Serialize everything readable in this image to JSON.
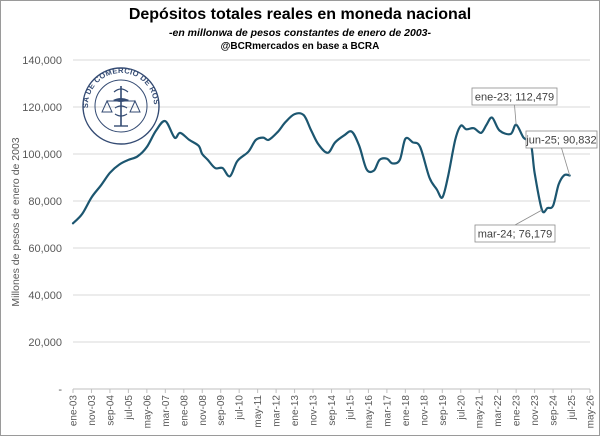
{
  "title": "Depósitos totales reales en moneda nacional",
  "subtitle": "-en millonwa de pesos constantes de enero de 2003-",
  "source": "@BCRmercados en base a BCRA",
  "logo_text": "BOLSA DE COMERCIO DE ROSARIO",
  "colors": {
    "line": "#1c5670",
    "grid": "#d9d9d9",
    "axis_text": "#595959"
  },
  "chart_data": {
    "type": "line",
    "title": "Depósitos totales reales en moneda nacional",
    "ylabel": "Millones de pesos de enero de 2003",
    "xlabel": "",
    "ylim": [
      0,
      140000
    ],
    "grid": true,
    "y_ticks": [
      {
        "value": 0,
        "label": "-"
      },
      {
        "value": 20000,
        "label": "20,000"
      },
      {
        "value": 40000,
        "label": "40,000"
      },
      {
        "value": 60000,
        "label": "60,000"
      },
      {
        "value": 80000,
        "label": "80,000"
      },
      {
        "value": 100000,
        "label": "100,000"
      },
      {
        "value": 120000,
        "label": "120,000"
      },
      {
        "value": 140000,
        "label": "140,000"
      }
    ],
    "x_ticks": [
      "ene-03",
      "nov-03",
      "sep-04",
      "jul-05",
      "may-06",
      "mar-07",
      "ene-08",
      "nov-08",
      "sep-09",
      "jul-10",
      "may-11",
      "mar-12",
      "ene-13",
      "nov-13",
      "sep-14",
      "jul-15",
      "may-16",
      "mar-17",
      "ene-18",
      "nov-18",
      "sep-19",
      "jul-20",
      "may-21",
      "mar-22",
      "ene-23",
      "nov-23",
      "sep-24",
      "jul-25",
      "may-26"
    ],
    "series": [
      {
        "values": [
          [
            "2003-01",
            70500
          ],
          [
            "2003-06",
            74500
          ],
          [
            "2003-11",
            81500
          ],
          [
            "2004-04",
            86500
          ],
          [
            "2004-09",
            92000
          ],
          [
            "2005-02",
            95500
          ],
          [
            "2005-07",
            97500
          ],
          [
            "2005-12",
            99000
          ],
          [
            "2006-05",
            103000
          ],
          [
            "2006-10",
            110000
          ],
          [
            "2007-03",
            114000
          ],
          [
            "2007-08",
            107000
          ],
          [
            "2007-11",
            109000
          ],
          [
            "2008-04",
            106000
          ],
          [
            "2008-09",
            103500
          ],
          [
            "2008-11",
            100000
          ],
          [
            "2009-02",
            97500
          ],
          [
            "2009-06",
            94000
          ],
          [
            "2009-10",
            94000
          ],
          [
            "2010-02",
            90500
          ],
          [
            "2010-06",
            97000
          ],
          [
            "2010-12",
            101000
          ],
          [
            "2011-04",
            106000
          ],
          [
            "2011-08",
            107000
          ],
          [
            "2011-11",
            106000
          ],
          [
            "2012-04",
            109500
          ],
          [
            "2012-08",
            113500
          ],
          [
            "2013-01",
            117000
          ],
          [
            "2013-06",
            116500
          ],
          [
            "2013-10",
            110000
          ],
          [
            "2014-02",
            104000
          ],
          [
            "2014-07",
            100500
          ],
          [
            "2014-11",
            105000
          ],
          [
            "2015-04",
            108000
          ],
          [
            "2015-08",
            109500
          ],
          [
            "2015-12",
            103500
          ],
          [
            "2016-04",
            93500
          ],
          [
            "2016-08",
            93000
          ],
          [
            "2016-11",
            97500
          ],
          [
            "2017-03",
            98000
          ],
          [
            "2017-06",
            96000
          ],
          [
            "2017-10",
            97500
          ],
          [
            "2018-01",
            106500
          ],
          [
            "2018-05",
            105000
          ],
          [
            "2018-09",
            103000
          ],
          [
            "2019-02",
            90000
          ],
          [
            "2019-06",
            85000
          ],
          [
            "2019-09",
            81500
          ],
          [
            "2019-12",
            90000
          ],
          [
            "2020-04",
            106000
          ],
          [
            "2020-07",
            112000
          ],
          [
            "2020-10",
            110500
          ],
          [
            "2021-02",
            111000
          ],
          [
            "2021-06",
            109000
          ],
          [
            "2021-09",
            112500
          ],
          [
            "2021-12",
            115500
          ],
          [
            "2022-04",
            110000
          ],
          [
            "2022-10",
            108500
          ],
          [
            "2023-01",
            112479
          ],
          [
            "2023-05",
            107000
          ],
          [
            "2023-09",
            104000
          ],
          [
            "2023-11",
            92000
          ],
          [
            "2024-03",
            76179
          ],
          [
            "2024-06",
            77000
          ],
          [
            "2024-09",
            78000
          ],
          [
            "2024-12",
            87000
          ],
          [
            "2025-03",
            91000
          ],
          [
            "2025-06",
            90832
          ]
        ]
      }
    ],
    "annotations": [
      {
        "label": "ene-23; 112,479",
        "x": "2023-01",
        "y": 112479
      },
      {
        "label": "jun-25; 90,832",
        "x": "2025-06",
        "y": 90832
      },
      {
        "label": "mar-24; 76,179",
        "x": "2024-03",
        "y": 76179
      }
    ]
  }
}
